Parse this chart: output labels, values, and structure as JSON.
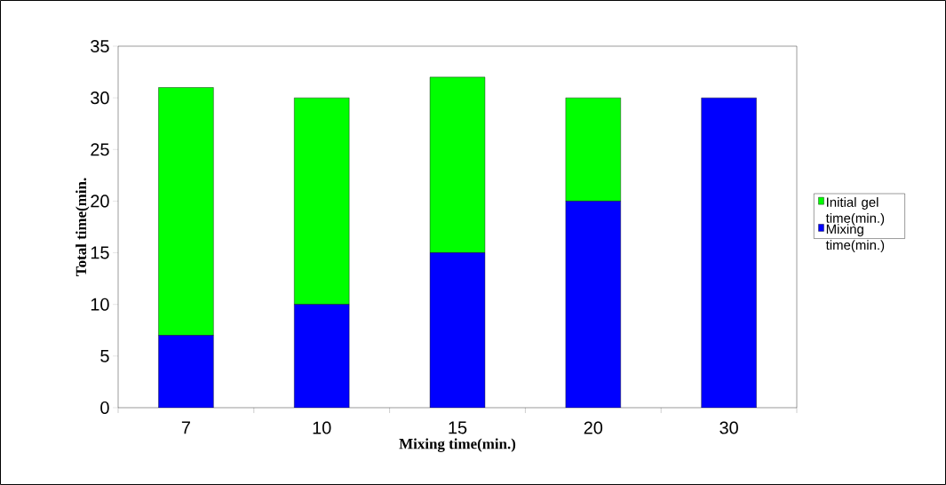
{
  "chart_data": {
    "type": "bar",
    "stacked": true,
    "xlabel": "Mixing time(min.)",
    "ylabel": "Total time(min.",
    "categories": [
      "7",
      "10",
      "15",
      "20",
      "30"
    ],
    "series": [
      {
        "name": "Mixing time(min.)",
        "color": "#0000ff",
        "values": [
          7,
          10,
          15,
          20,
          30
        ]
      },
      {
        "name": "Initial gel time(min.)",
        "color": "#00ff00",
        "values": [
          24,
          20,
          17,
          10,
          0
        ]
      }
    ],
    "ylim": [
      0,
      35
    ],
    "yticks": [
      0,
      5,
      10,
      15,
      20,
      25,
      30,
      35
    ],
    "grid": false,
    "legend": "right"
  }
}
